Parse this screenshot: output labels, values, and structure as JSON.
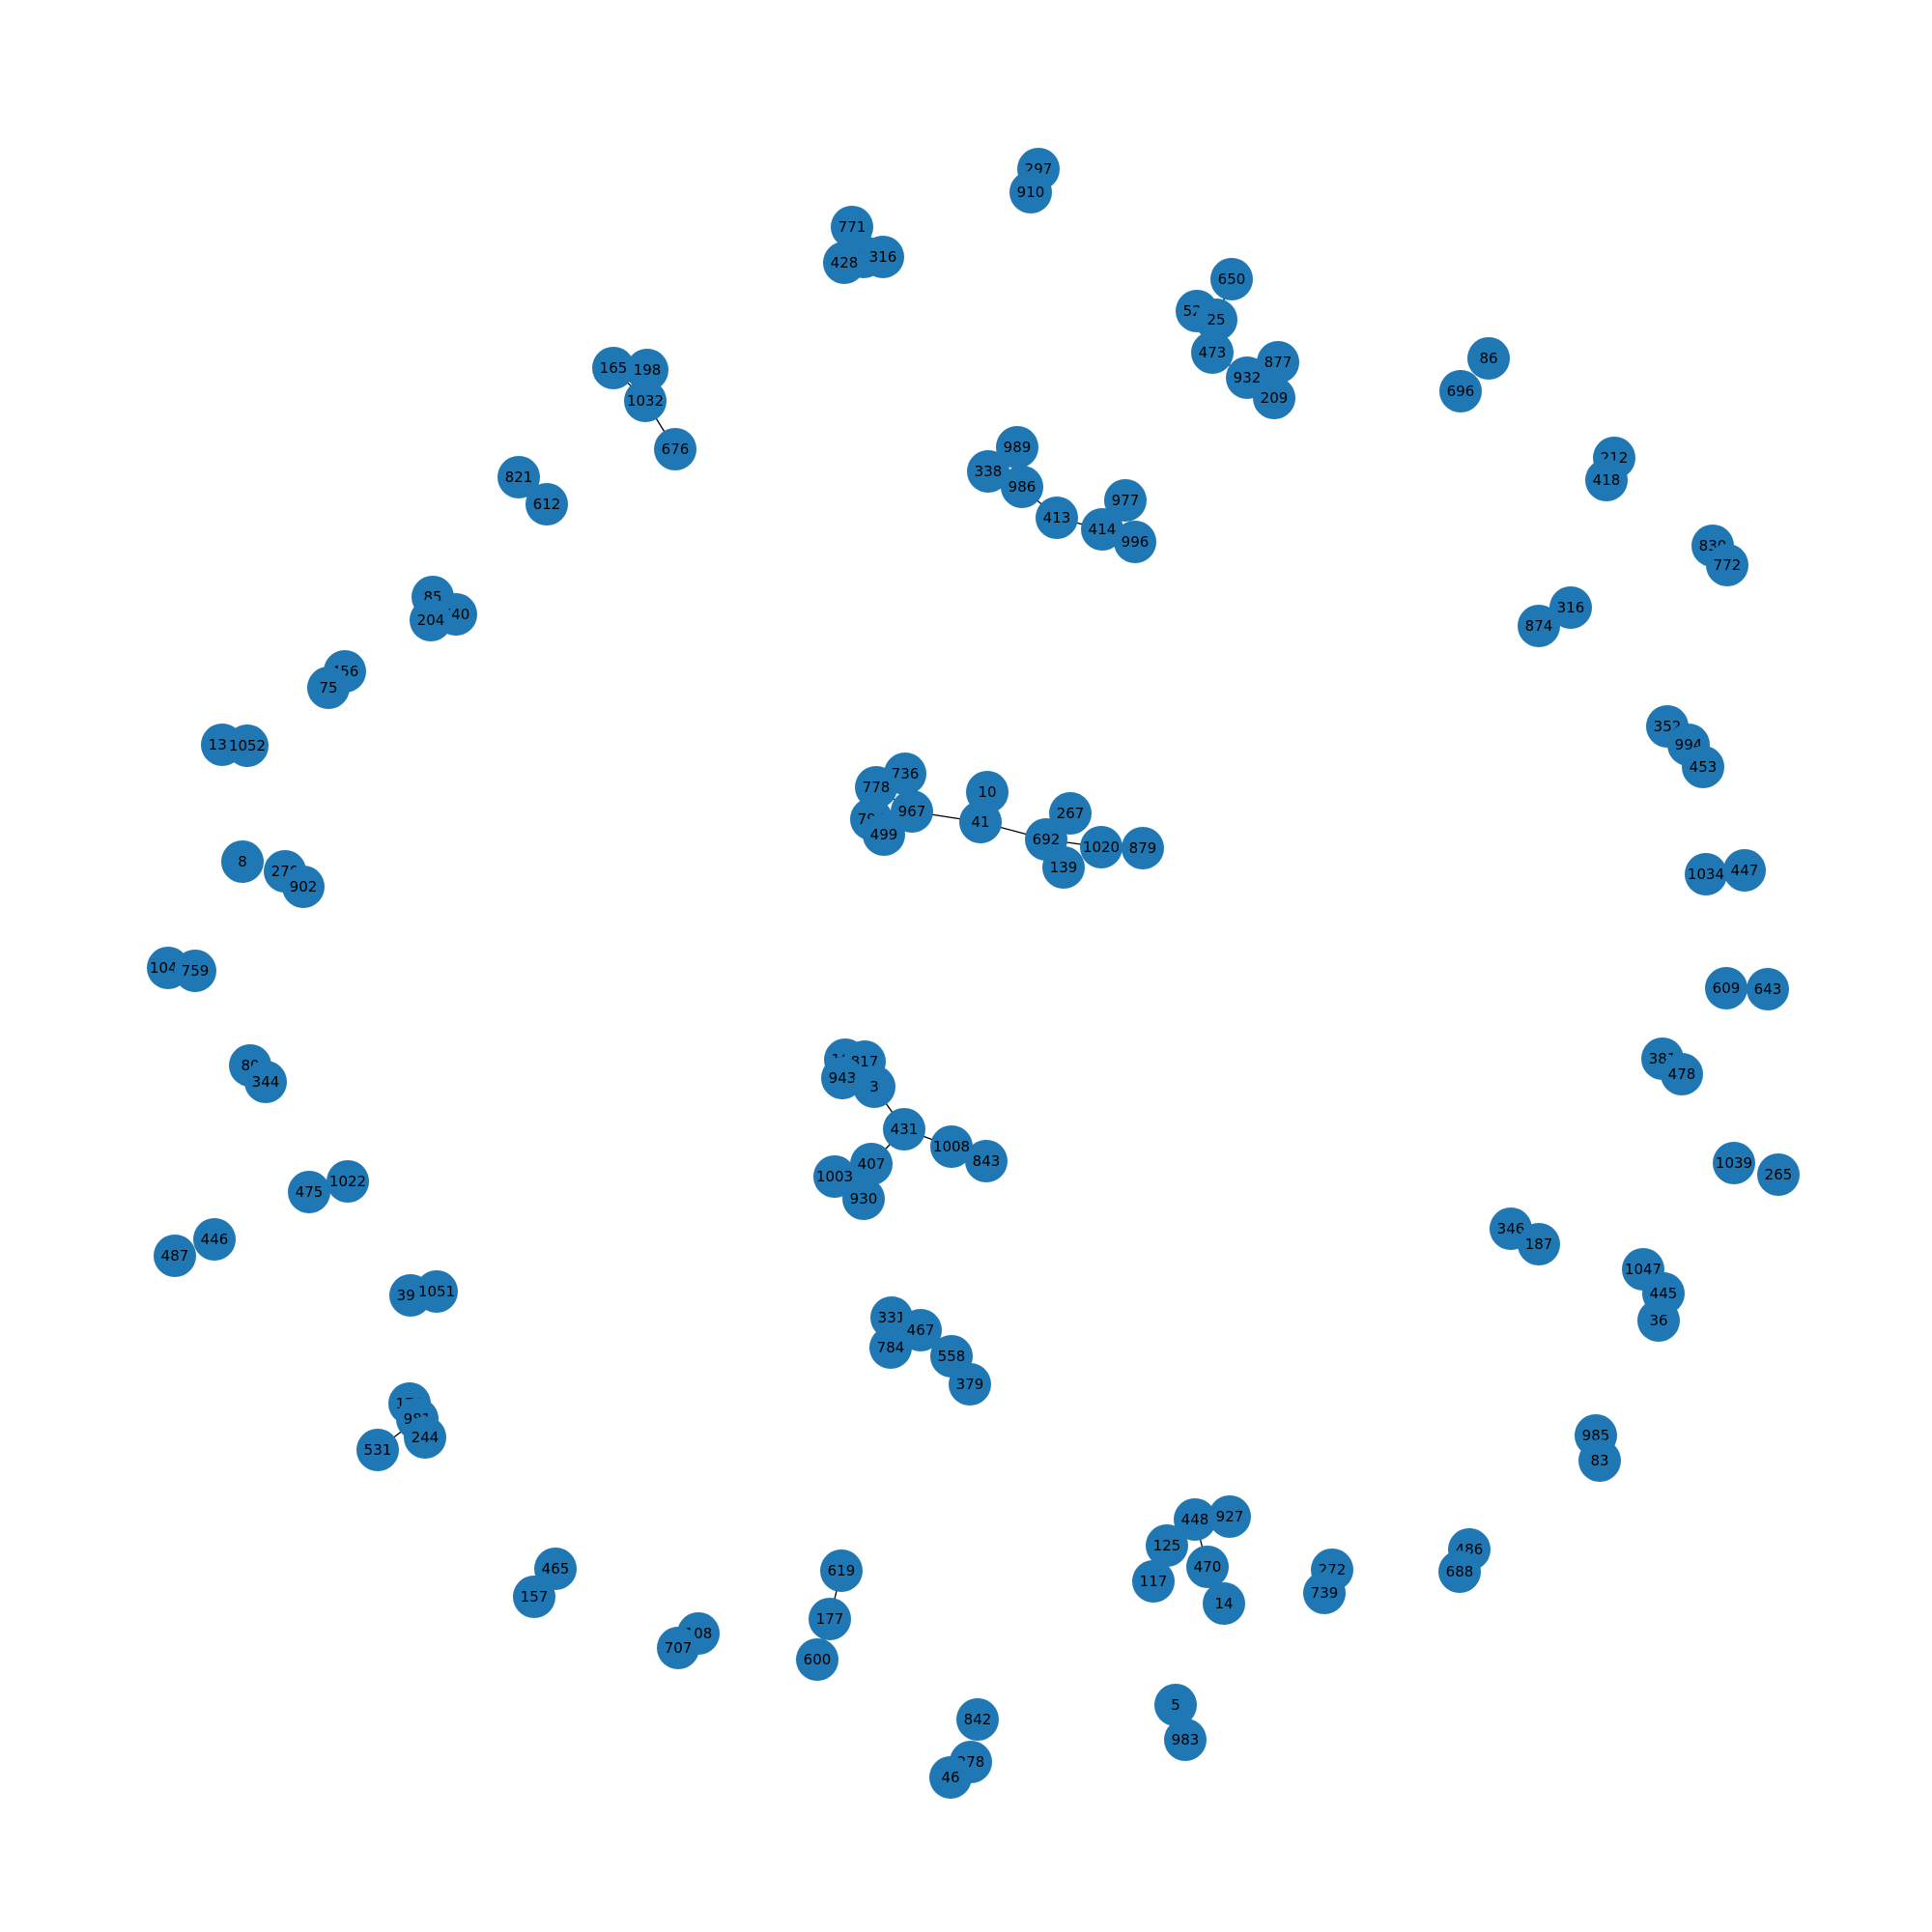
{
  "graph": {
    "node_color": "#1f77b4",
    "edge_color": "#000000",
    "nodes": [
      "297",
      "910",
      "771",
      "903",
      "316",
      "428",
      "650",
      "527",
      "25",
      "473",
      "877",
      "932",
      "209",
      "86",
      "696",
      "165",
      "198",
      "1032",
      "676",
      "989",
      "338",
      "986",
      "413",
      "977",
      "414",
      "996",
      "212",
      "418",
      "821",
      "612",
      "830",
      "772",
      "85",
      "740",
      "204",
      "874",
      "316",
      "456",
      "75",
      "352",
      "994",
      "453",
      "131",
      "1052",
      "736",
      "778",
      "10",
      "267",
      "967",
      "794",
      "41",
      "499",
      "692",
      "1020",
      "879",
      "139",
      "1034",
      "447",
      "8",
      "270",
      "902",
      "1042",
      "759",
      "609",
      "643",
      "163",
      "817",
      "943",
      "3",
      "381",
      "478",
      "80",
      "344",
      "431",
      "1008",
      "843",
      "407",
      "1003",
      "930",
      "1039",
      "265",
      "475",
      "1022",
      "346",
      "187",
      "446",
      "487",
      "1047",
      "445",
      "36",
      "397",
      "1051",
      "331",
      "467",
      "784",
      "558",
      "379",
      "171",
      "981",
      "244",
      "531",
      "985",
      "83",
      "448",
      "927",
      "125",
      "470",
      "117",
      "14",
      "465",
      "157",
      "272",
      "739",
      "486",
      "688",
      "619",
      "177",
      "108",
      "707",
      "600",
      "842",
      "278",
      "46",
      "5",
      "983"
    ],
    "edges": [
      [
        "1032",
        "676"
      ],
      [
        "165",
        "1032"
      ],
      [
        "198",
        "1032"
      ],
      [
        "967",
        "41"
      ],
      [
        "41",
        "692"
      ],
      [
        "41",
        "10"
      ],
      [
        "692",
        "1020"
      ],
      [
        "692",
        "139"
      ],
      [
        "692",
        "267"
      ],
      [
        "1020",
        "879"
      ],
      [
        "778",
        "967"
      ],
      [
        "736",
        "967"
      ],
      [
        "794",
        "967"
      ],
      [
        "499",
        "967"
      ],
      [
        "3",
        "431"
      ],
      [
        "431",
        "1008"
      ],
      [
        "1008",
        "843"
      ],
      [
        "431",
        "407"
      ],
      [
        "407",
        "1003"
      ],
      [
        "407",
        "930"
      ],
      [
        "163",
        "3"
      ],
      [
        "817",
        "3"
      ],
      [
        "943",
        "3"
      ],
      [
        "619",
        "177"
      ],
      [
        "177",
        "600"
      ],
      [
        "981",
        "531"
      ],
      [
        "171",
        "981"
      ],
      [
        "981",
        "244"
      ],
      [
        "331",
        "467"
      ],
      [
        "784",
        "467"
      ],
      [
        "467",
        "558"
      ],
      [
        "558",
        "379"
      ],
      [
        "448",
        "125"
      ],
      [
        "448",
        "927"
      ],
      [
        "125",
        "117"
      ],
      [
        "448",
        "470"
      ],
      [
        "470",
        "14"
      ],
      [
        "527",
        "25"
      ],
      [
        "25",
        "650"
      ],
      [
        "25",
        "473"
      ],
      [
        "473",
        "932"
      ],
      [
        "932",
        "877"
      ],
      [
        "932",
        "209"
      ],
      [
        "989",
        "986"
      ],
      [
        "338",
        "986"
      ],
      [
        "986",
        "413"
      ],
      [
        "413",
        "414"
      ],
      [
        "414",
        "977"
      ],
      [
        "414",
        "996"
      ]
    ]
  }
}
